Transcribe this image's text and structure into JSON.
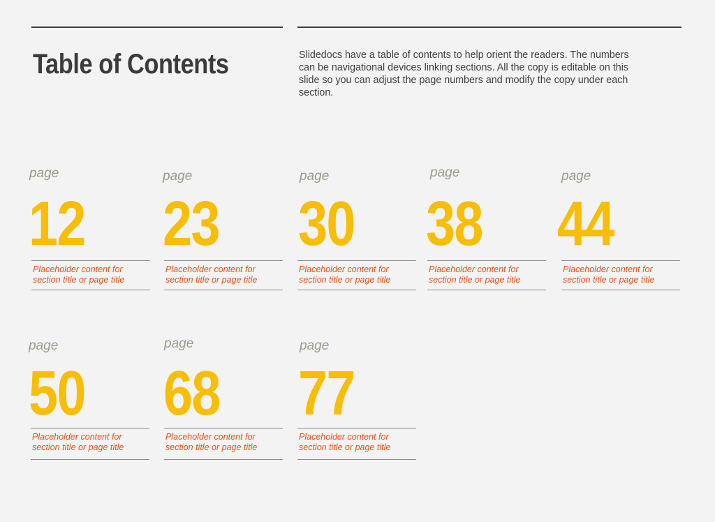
{
  "header": {
    "title": "Table of Contents",
    "intro_lines": [
      "Slidedocs have a table of contents to help orient the readers. The numbers",
      "can be navigational devices linking sections. All the copy is editable on this",
      "slide so you can adjust the page numbers and modify the copy under each",
      "section."
    ]
  },
  "colors": {
    "accent": "#f8bd07",
    "description": "#e0531c",
    "text": "#3b3b3b",
    "background": "#f3f3f3"
  },
  "entries": [
    {
      "page_label": "page",
      "number": "12",
      "desc1": "Placeholder content for",
      "desc2": "section title or page title"
    },
    {
      "page_label": "page",
      "number": "23",
      "desc1": "Placeholder content for",
      "desc2": "section title or page title"
    },
    {
      "page_label": "page",
      "number": "30",
      "desc1": "Placeholder content for",
      "desc2": "section title or page title"
    },
    {
      "page_label": "page",
      "number": "38",
      "desc1": "Placeholder content for",
      "desc2": "section title or page title"
    },
    {
      "page_label": "page",
      "number": "44",
      "desc1": "Placeholder content for",
      "desc2": "section title or page title"
    },
    {
      "page_label": "page",
      "number": "50",
      "desc1": "Placeholder content for",
      "desc2": "section title or page title"
    },
    {
      "page_label": "page",
      "number": "68",
      "desc1": "Placeholder content for",
      "desc2": "section title or page title"
    },
    {
      "page_label": "page",
      "number": "77",
      "desc1": "Placeholder content for",
      "desc2": "section title or page title"
    }
  ]
}
